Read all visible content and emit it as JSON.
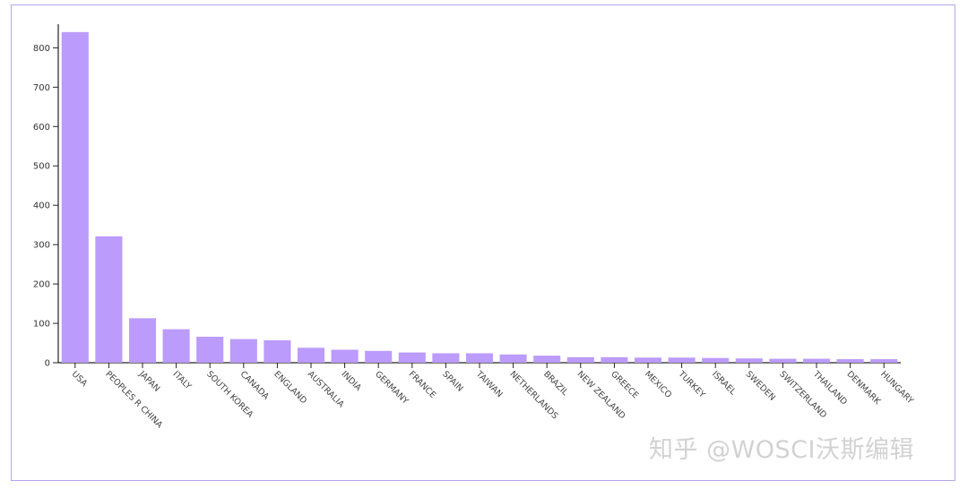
{
  "watermark": "知乎 @WOSCI沃斯编辑",
  "colors": {
    "bar": "#bb9bfb",
    "frame": "#b9a3f0",
    "axis": "#222222"
  },
  "chart_data": {
    "type": "bar",
    "title": "",
    "xlabel": "",
    "ylabel": "",
    "ylim": [
      0,
      860
    ],
    "yticks": [
      0,
      100,
      200,
      300,
      400,
      500,
      600,
      700,
      800
    ],
    "grid": false,
    "categories": [
      "USA",
      "PEOPLES R CHINA",
      "JAPAN",
      "ITALY",
      "SOUTH KOREA",
      "CANADA",
      "ENGLAND",
      "AUSTRALIA",
      "INDIA",
      "GERMANY",
      "FRANCE",
      "SPAIN",
      "TAIWAN",
      "NETHERLANDS",
      "BRAZIL",
      "NEW ZEALAND",
      "GREECE",
      "MEXICO",
      "TURKEY",
      "ISRAEL",
      "SWEDEN",
      "SWITZERLAND",
      "THAILAND",
      "DENMARK",
      "HUNGARY"
    ],
    "values": [
      840,
      321,
      113,
      85,
      66,
      60,
      57,
      38,
      33,
      30,
      26,
      24,
      24,
      21,
      18,
      14,
      14,
      13,
      13,
      12,
      11,
      10,
      10,
      9,
      9
    ]
  }
}
